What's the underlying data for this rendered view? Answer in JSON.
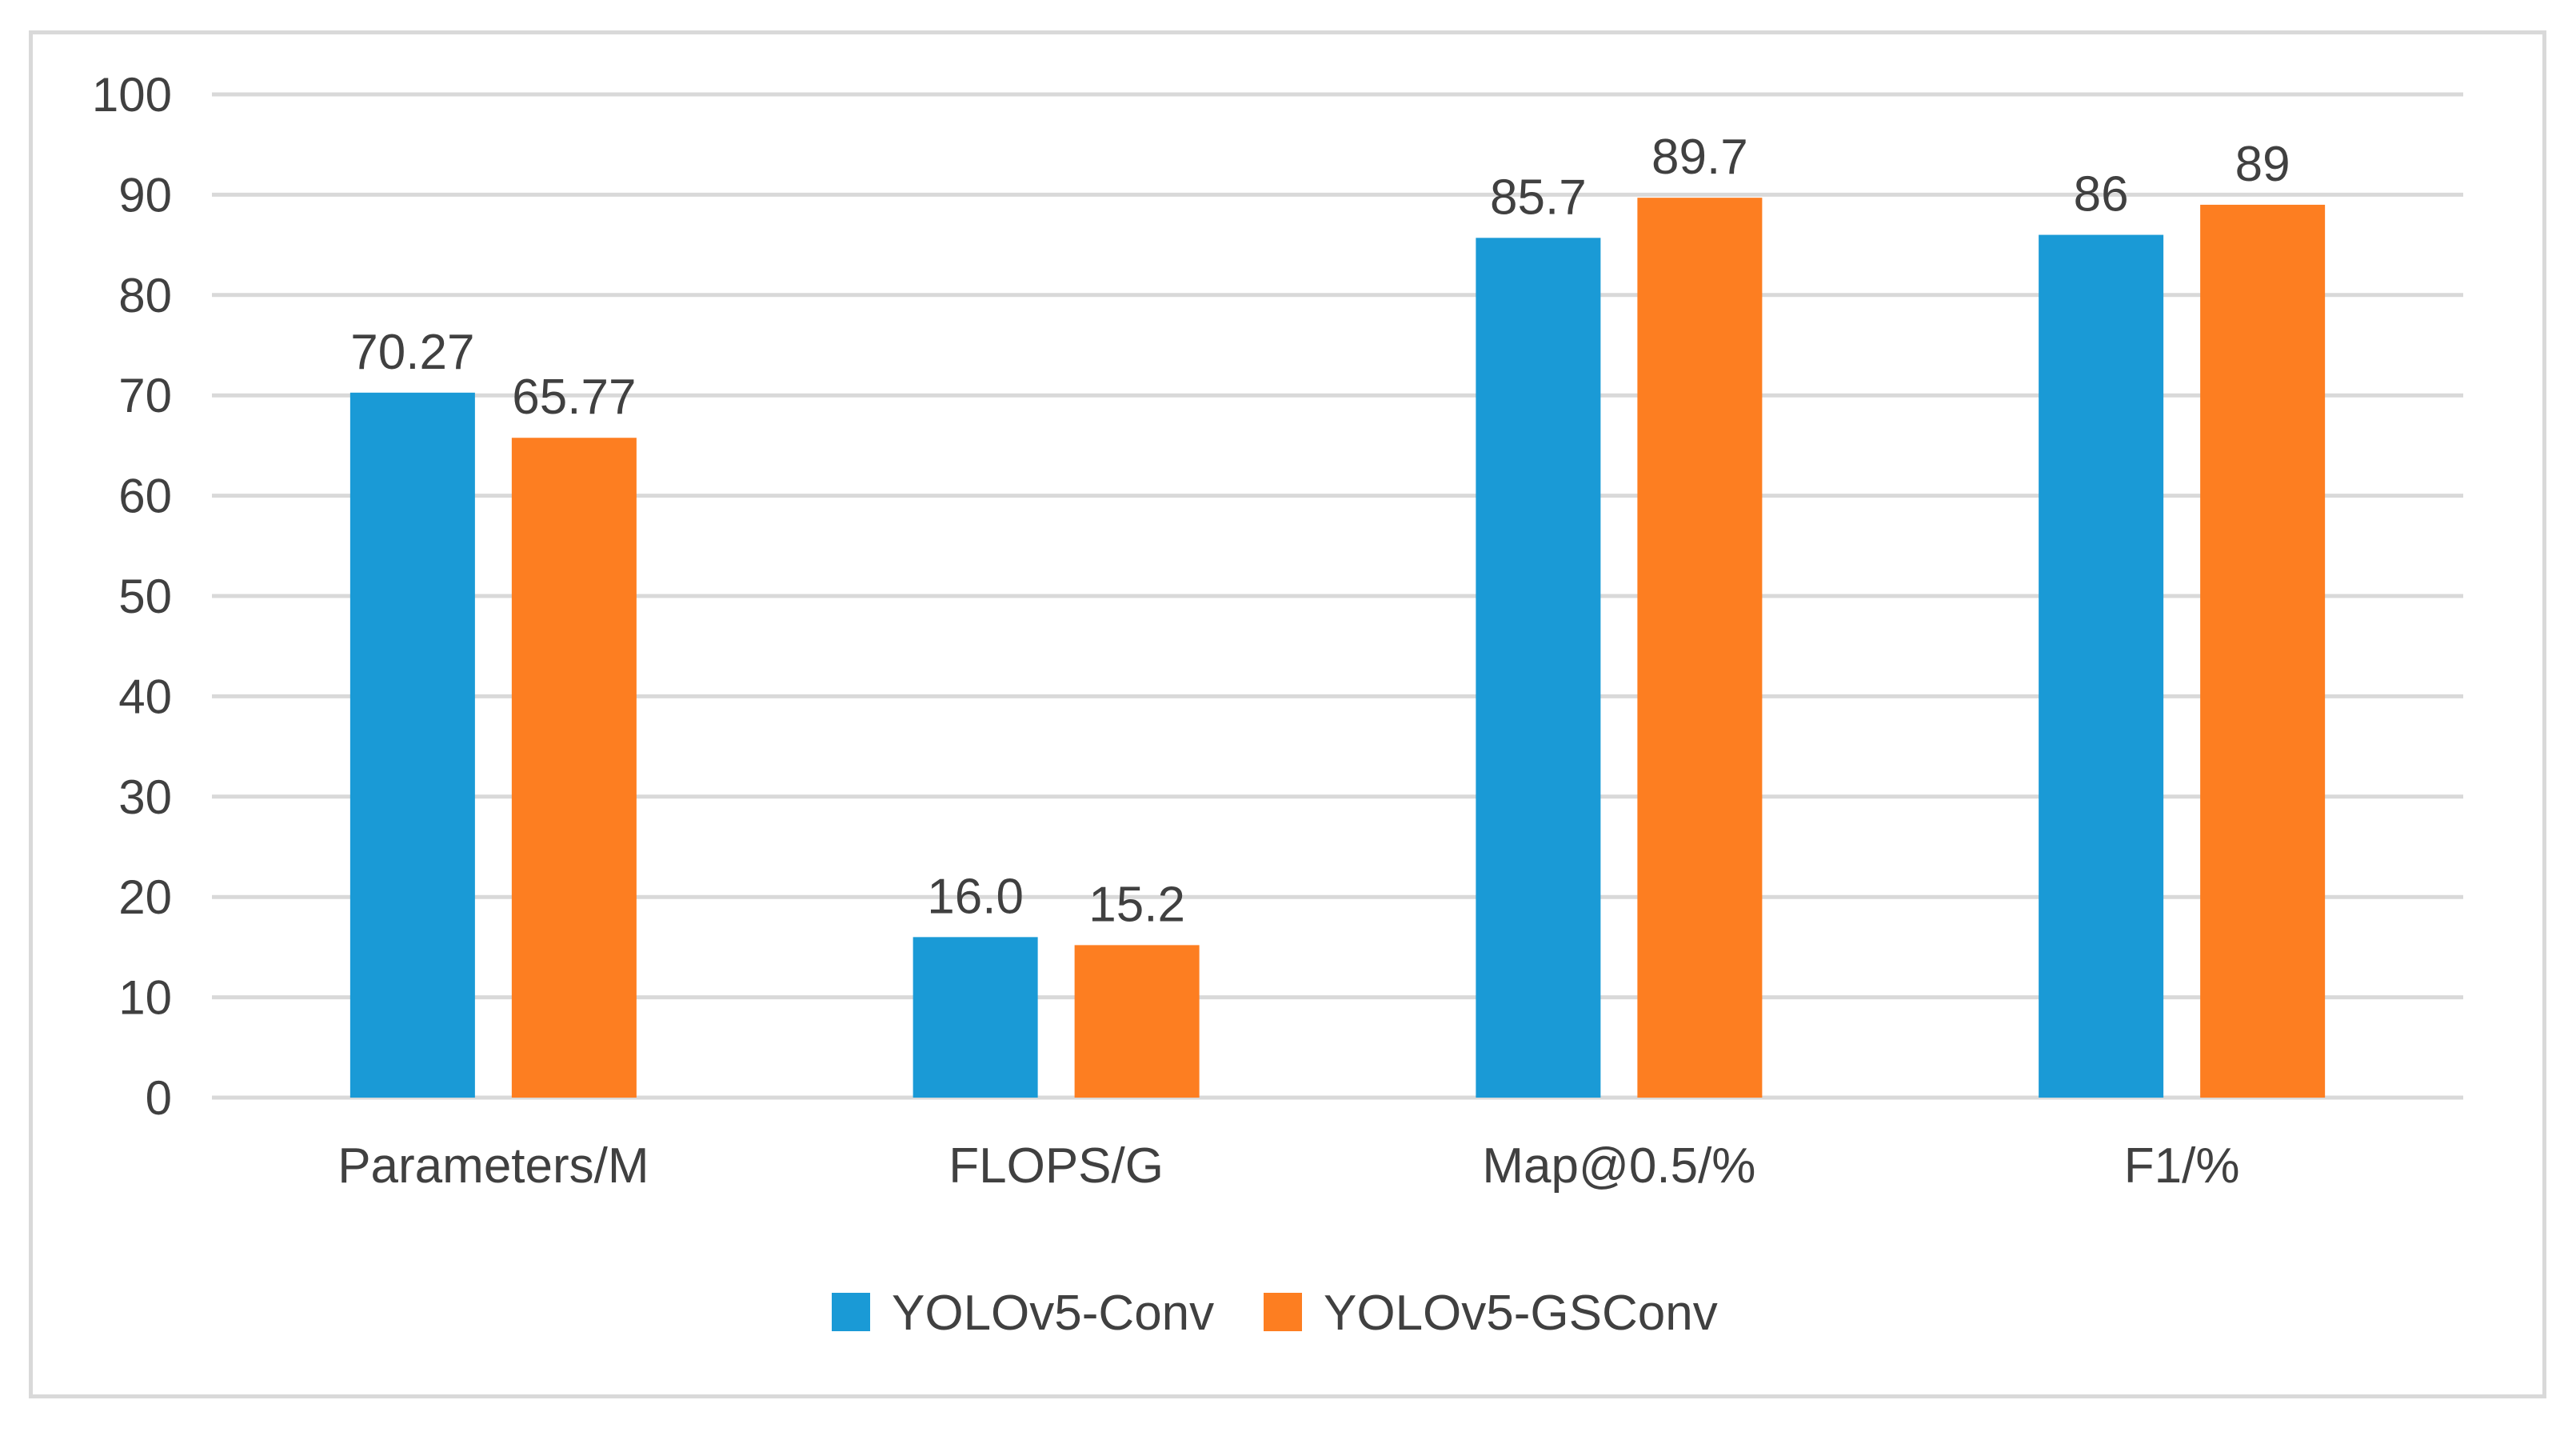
{
  "chart_data": {
    "type": "bar",
    "title": "",
    "xlabel": "",
    "ylabel": "",
    "categories": [
      "Parameters/M",
      "FLOPS/G",
      "Map@0.5/%",
      "F1/%"
    ],
    "series": [
      {
        "name": "YOLOv5-Conv",
        "color": "#1a9ad6",
        "values": [
          70.27,
          16.0,
          85.7,
          86
        ],
        "labels": [
          "70.27",
          "16.0",
          "85.7",
          "86"
        ]
      },
      {
        "name": "YOLOv5-GSConv",
        "color": "#fd7e21",
        "values": [
          65.77,
          15.2,
          89.7,
          89
        ],
        "labels": [
          "65.77",
          "15.2",
          "89.7",
          "89"
        ]
      }
    ],
    "ylim": [
      0,
      100
    ],
    "yticks": [
      0,
      10,
      20,
      30,
      40,
      50,
      60,
      70,
      80,
      90,
      100
    ],
    "grid": true,
    "legend_position": "bottom"
  }
}
